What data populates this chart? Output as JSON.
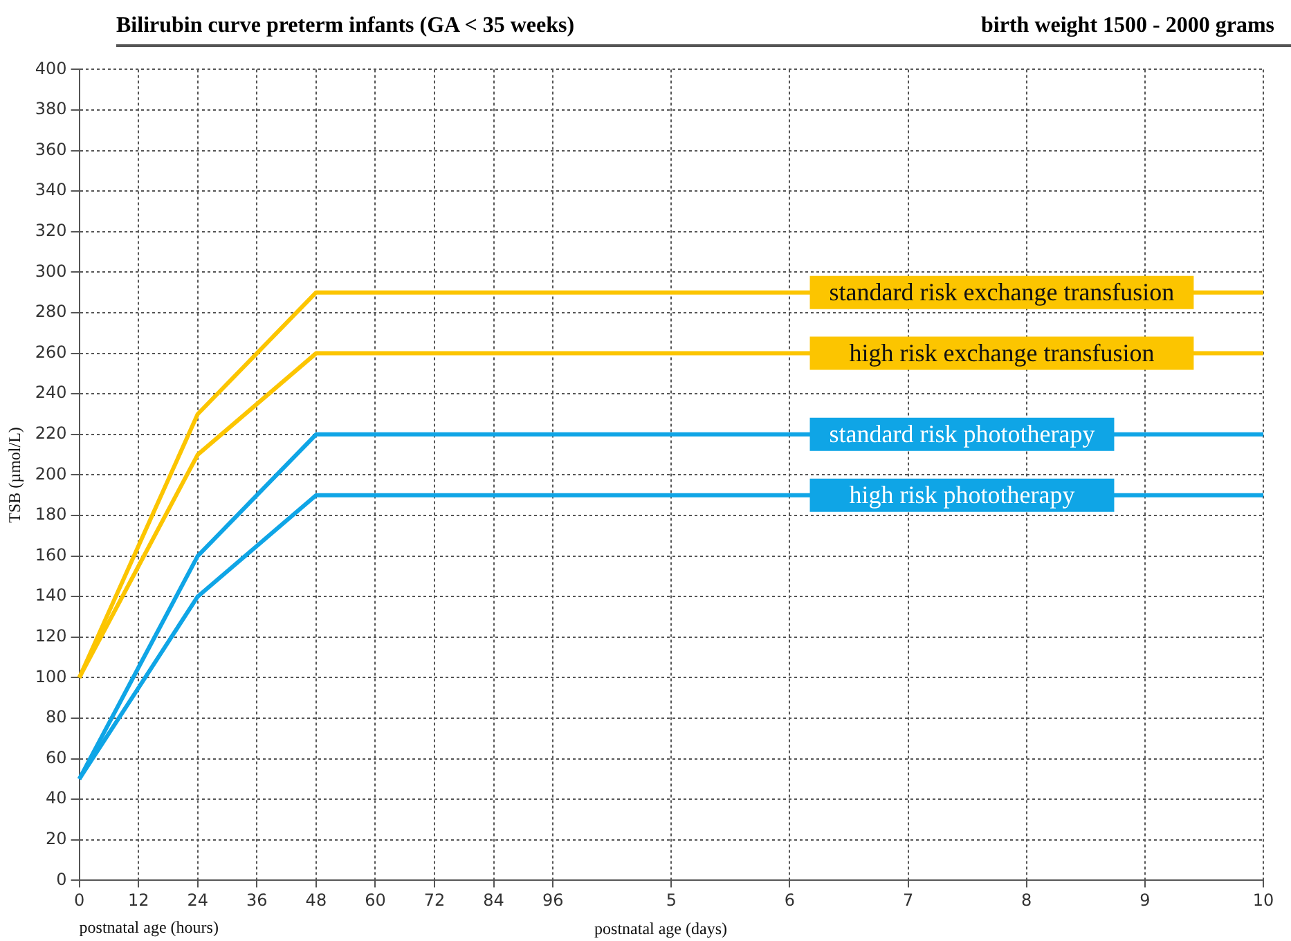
{
  "chart_data": {
    "type": "line",
    "title": "Bilirubin curve preterm infants (GA < 35 weeks)",
    "subtitle": "birth weight 1500 - 2000 grams",
    "xlabel": "postnatal age (hours)",
    "ylabel": "TSB (µmol/L)",
    "annotations": [
      "postnatal age (days)"
    ],
    "categories": [
      "0",
      "12",
      "24",
      "36",
      "48",
      "60",
      "72",
      "84",
      "96",
      null,
      "5",
      null,
      "6",
      null,
      "7",
      null,
      "8",
      null,
      "9",
      null,
      "10"
    ],
    "series": [
      {
        "name": "standard risk exchange transfusion",
        "color": "#fcc500",
        "values": [
          100,
          165,
          230,
          260,
          290,
          290,
          290,
          290,
          290,
          290,
          290,
          290,
          290,
          null,
          null,
          null,
          null,
          null,
          null,
          null,
          290
        ]
      },
      {
        "name": "high risk exchange transfusion",
        "color": "#fcc500",
        "values": [
          100,
          155,
          210,
          235,
          260,
          260,
          260,
          260,
          260,
          260,
          260,
          260,
          260,
          null,
          null,
          null,
          null,
          null,
          null,
          null,
          260
        ]
      },
      {
        "name": "standard risk phototherapy",
        "color": "#0fa5e6",
        "values": [
          50,
          105,
          160,
          190,
          220,
          220,
          220,
          220,
          220,
          220,
          220,
          220,
          220,
          null,
          null,
          null,
          null,
          null,
          220,
          220,
          220
        ]
      },
      {
        "name": "high risk phototherapy",
        "color": "#0fa5e6",
        "values": [
          50,
          95,
          140,
          165,
          190,
          190,
          190,
          190,
          190,
          190,
          190,
          190,
          190,
          null,
          null,
          null,
          null,
          null,
          190,
          190,
          190
        ]
      }
    ],
    "ylim": [
      0,
      400
    ],
    "yticks": [
      0,
      20,
      40,
      60,
      80,
      100,
      120,
      140,
      160,
      180,
      200,
      220,
      240,
      260,
      280,
      300,
      320,
      340,
      360,
      380,
      400
    ],
    "grid": true,
    "legend": false,
    "marker": "none",
    "line_style": "solid"
  }
}
